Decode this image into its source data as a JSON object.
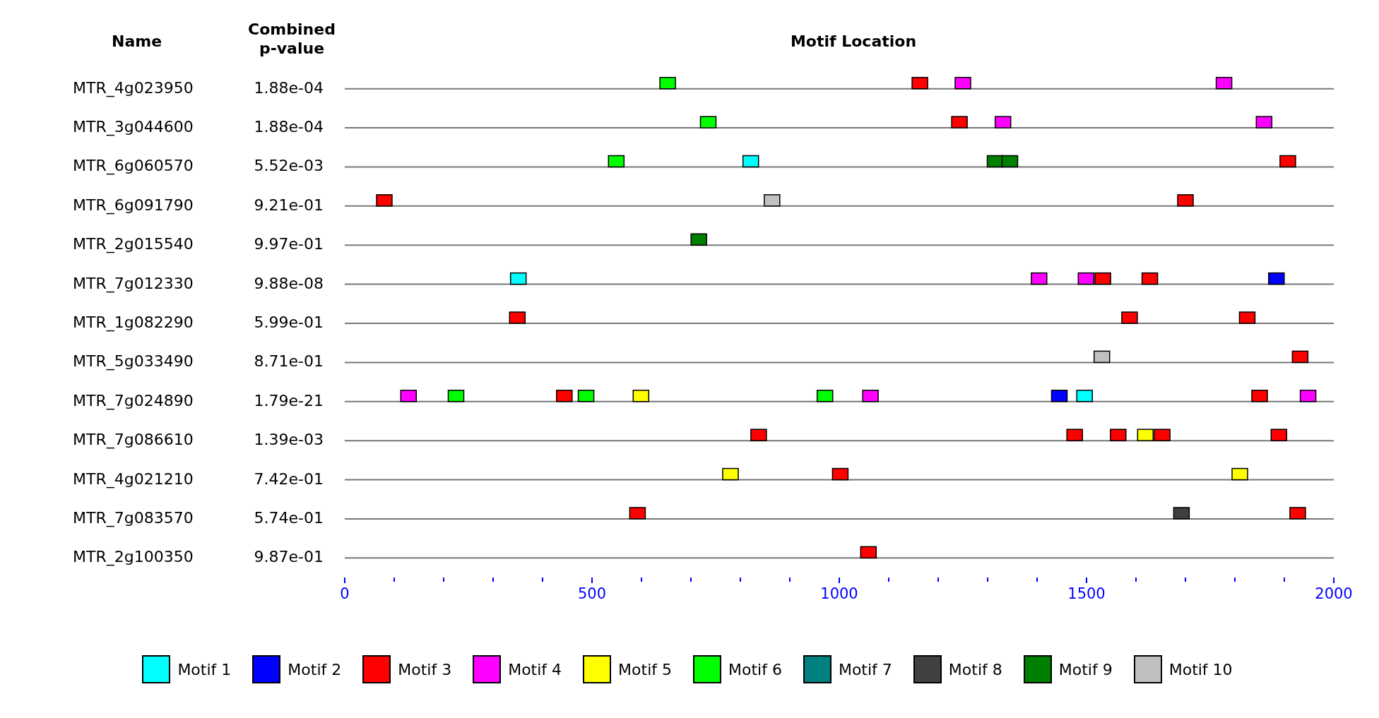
{
  "chart_data": {
    "type": "scatter",
    "orientation": "horizontal",
    "title": "Motif Location",
    "ylabel": "Name",
    "y2label": "Combined p-value",
    "categories": [
      "MTR_4g023950",
      "MTR_3g044600",
      "MTR_6g060570",
      "MTR_6g091790",
      "MTR_2g015540",
      "MTR_7g012330",
      "MTR_1g082290",
      "MTR_5g033490",
      "MTR_7g024890",
      "MTR_7g086610",
      "MTR_4g021210",
      "MTR_7g083570",
      "MTR_2g100350"
    ],
    "y2_categories": [
      "1.88e-04",
      "1.88e-04",
      "5.52e-03",
      "9.21e-01",
      "9.97e-01",
      "9.88e-08",
      "5.99e-01",
      "8.71e-01",
      "1.79e-21",
      "1.39e-03",
      "7.42e-01",
      "5.74e-01",
      "9.87e-01"
    ],
    "xlim": [
      0,
      2000
    ],
    "xticks": [
      0,
      {
        "value": 100,
        "label": null
      },
      {
        "value": 200,
        "label": null
      },
      {
        "value": 300,
        "label": null
      },
      {
        "value": 400,
        "label": null
      },
      500,
      {
        "value": 600,
        "label": null
      },
      {
        "value": 700,
        "label": null
      },
      {
        "value": 800,
        "label": null
      },
      {
        "value": 900,
        "label": null
      },
      1000,
      {
        "value": 1100,
        "label": null
      },
      {
        "value": 1200,
        "label": null
      },
      {
        "value": 1300,
        "label": null
      },
      {
        "value": 1400,
        "label": null
      },
      1500,
      {
        "value": 1600,
        "label": null
      },
      {
        "value": 1700,
        "label": null
      },
      {
        "value": 1800,
        "label": null
      },
      {
        "value": 1900,
        "label": null
      },
      2000
    ],
    "grid": "y",
    "legend": "bottom",
    "marker": "square",
    "series": [
      {
        "name": "Motif 1",
        "color": "#00ffff",
        "values": [
          821,
          351,
          1496
        ],
        "x": [
          "MTR_6g060570",
          "MTR_7g012330",
          "MTR_7g024890"
        ]
      },
      {
        "name": "Motif 2",
        "color": "#0000ff",
        "values": [
          1884,
          1445
        ],
        "x": [
          "MTR_7g012330",
          "MTR_7g024890"
        ]
      },
      {
        "name": "Motif 3",
        "color": "#ff0000",
        "values": [
          1163,
          1243,
          1907,
          80,
          1700,
          1533,
          1628,
          349,
          1587,
          1825,
          1932,
          444,
          1850,
          837,
          1476,
          1564,
          1653,
          1889,
          1002,
          592,
          1927,
          1059
        ],
        "x": [
          "MTR_4g023950",
          "MTR_3g044600",
          "MTR_6g060570",
          "MTR_6g091790",
          "MTR_6g091790",
          "MTR_7g012330",
          "MTR_7g012330",
          "MTR_1g082290",
          "MTR_1g082290",
          "MTR_1g082290",
          "MTR_5g033490",
          "MTR_7g024890",
          "MTR_7g024890",
          "MTR_7g086610",
          "MTR_7g086610",
          "MTR_7g086610",
          "MTR_7g086610",
          "MTR_7g086610",
          "MTR_4g021210",
          "MTR_7g083570",
          "MTR_7g083570",
          "MTR_2g100350"
        ]
      },
      {
        "name": "Motif 4",
        "color": "#ff00ff",
        "values": [
          1250,
          1778,
          1331,
          1859,
          1404,
          1499,
          129,
          1063,
          1948
        ],
        "x": [
          "MTR_4g023950",
          "MTR_4g023950",
          "MTR_3g044600",
          "MTR_3g044600",
          "MTR_7g012330",
          "MTR_7g012330",
          "MTR_7g024890",
          "MTR_7g024890",
          "MTR_7g024890"
        ]
      },
      {
        "name": "Motif 5",
        "color": "#ffff00",
        "values": [
          599,
          1619,
          780,
          1810
        ],
        "x": [
          "MTR_7g024890",
          "MTR_7g086610",
          "MTR_4g021210",
          "MTR_4g021210"
        ]
      },
      {
        "name": "Motif 6",
        "color": "#00ff00",
        "values": [
          653,
          735,
          549,
          225,
          488,
          971
        ],
        "x": [
          "MTR_4g023950",
          "MTR_3g044600",
          "MTR_6g060570",
          "MTR_7g024890",
          "MTR_7g024890",
          "MTR_7g024890"
        ]
      },
      {
        "name": "Motif 7",
        "color": "#008080",
        "values": [
          null,
          null,
          null,
          null,
          null,
          null,
          null,
          null,
          null,
          null,
          null,
          null,
          null
        ],
        "x": [
          "MTR_4g023950",
          "MTR_3g044600",
          "MTR_6g060570",
          "MTR_6g091790",
          "MTR_2g015540",
          "MTR_7g012330",
          "MTR_1g082290",
          "MTR_5g033490",
          "MTR_7g024890",
          "MTR_7g086610",
          "MTR_4g021210",
          "MTR_7g083570",
          "MTR_2g100350"
        ]
      },
      {
        "name": "Motif 8",
        "color": "#404040",
        "values": [
          1692
        ],
        "x": [
          "MTR_7g083570"
        ]
      },
      {
        "name": "Motif 9",
        "color": "#008000",
        "values": [
          1315,
          1345,
          716
        ],
        "x": [
          "MTR_6g060570",
          "MTR_6g060570",
          "MTR_2g015540"
        ]
      },
      {
        "name": "Motif 10",
        "color": "#c0c0c0",
        "values": [
          864,
          1531
        ],
        "x": [
          "MTR_6g091790",
          "MTR_5g033490"
        ]
      }
    ]
  }
}
